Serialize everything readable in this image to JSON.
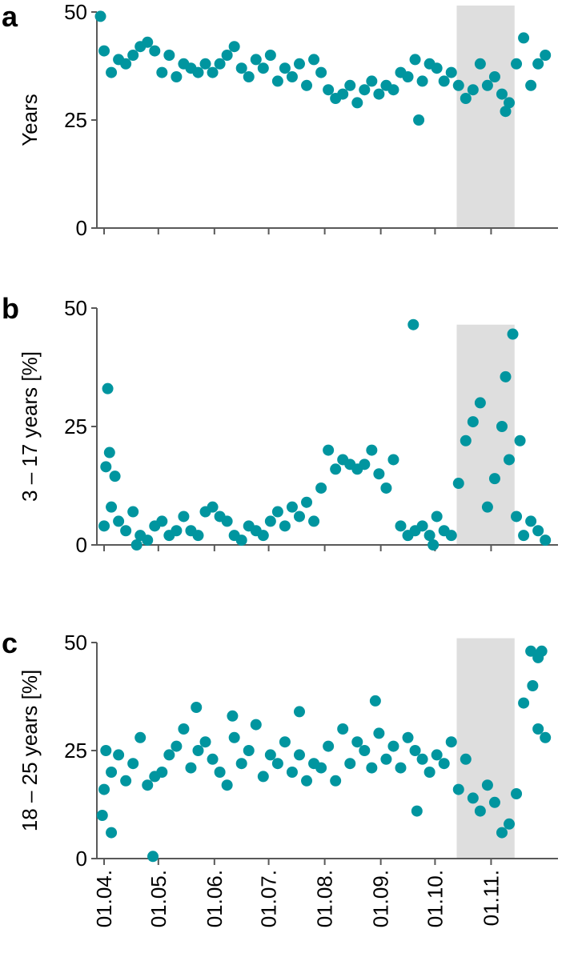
{
  "chart_data": [
    {
      "type": "scatter",
      "title": "a",
      "y_label": "Years",
      "color": "#00959f",
      "xlim": [
        -4,
        251
      ],
      "xticks": [
        0,
        30,
        61,
        91,
        122,
        153,
        183,
        214
      ],
      "ylim": [
        0,
        50
      ],
      "yticks": [
        0,
        25,
        50
      ],
      "band": {
        "x": [
          195,
          227
        ],
        "y": [
          0,
          51.5
        ],
        "color": "#dedede"
      },
      "x": [
        0,
        4,
        8,
        12,
        16,
        20,
        24,
        28,
        32,
        36,
        40,
        44,
        48,
        52,
        56,
        60,
        64,
        68,
        72,
        76,
        80,
        84,
        88,
        92,
        96,
        100,
        104,
        108,
        112,
        116,
        120,
        124,
        128,
        132,
        136,
        140,
        144,
        148,
        152,
        156,
        160,
        164,
        168,
        172,
        176,
        180,
        184,
        188,
        192,
        196,
        200,
        204,
        208,
        212,
        216,
        220,
        224,
        228,
        232,
        236,
        240,
        244,
        -2,
        174,
        222
      ],
      "values": [
        41,
        36,
        39,
        38,
        40,
        42,
        43,
        41,
        36,
        40,
        35,
        38,
        37,
        36,
        38,
        36,
        38,
        40,
        42,
        37,
        35,
        39,
        37,
        40,
        34,
        37,
        35,
        38,
        33,
        39,
        36,
        32,
        30,
        31,
        33,
        29,
        32,
        34,
        31,
        33,
        32,
        36,
        35,
        39,
        34,
        38,
        37,
        34,
        36,
        33,
        30,
        32,
        38,
        33,
        35,
        31,
        29,
        38,
        44,
        33,
        38,
        40,
        49,
        25,
        27
      ]
    },
    {
      "type": "scatter",
      "title": "b",
      "y_label": "3 – 17 years [%]",
      "color": "#00959f",
      "xlim": [
        -4,
        251
      ],
      "xticks": [
        0,
        30,
        61,
        91,
        122,
        153,
        183,
        214
      ],
      "ylim": [
        0,
        50
      ],
      "yticks": [
        0,
        25,
        50
      ],
      "band": {
        "x": [
          195,
          227
        ],
        "y": [
          0,
          46.5
        ],
        "color": "#dedede"
      },
      "x": [
        0,
        4,
        8,
        12,
        16,
        20,
        24,
        28,
        32,
        36,
        40,
        44,
        48,
        52,
        56,
        60,
        64,
        68,
        72,
        76,
        80,
        84,
        88,
        92,
        96,
        100,
        104,
        108,
        112,
        116,
        120,
        124,
        128,
        132,
        136,
        140,
        144,
        148,
        152,
        156,
        160,
        164,
        168,
        172,
        176,
        180,
        184,
        188,
        192,
        196,
        200,
        204,
        208,
        212,
        216,
        220,
        224,
        228,
        232,
        236,
        240,
        244,
        2,
        3,
        6,
        1,
        171,
        226,
        222,
        230,
        182,
        18
      ],
      "values": [
        4,
        8,
        5,
        3,
        7,
        2,
        1,
        4,
        5,
        2,
        3,
        6,
        3,
        2,
        7,
        8,
        6,
        5,
        2,
        1,
        4,
        3,
        2,
        5,
        7,
        4,
        8,
        6,
        9,
        5,
        12,
        20,
        16,
        18,
        17,
        16,
        17,
        20,
        15,
        12,
        18,
        4,
        2,
        3,
        4,
        2,
        6,
        3,
        2,
        13,
        22,
        26,
        30,
        8,
        14,
        25,
        18,
        6,
        2,
        5,
        3,
        1,
        33,
        19.5,
        14.5,
        16.5,
        46.5,
        44.5,
        35.5,
        22,
        0,
        0
      ]
    },
    {
      "type": "scatter",
      "title": "c",
      "y_label": "18 – 25 years [%]",
      "color": "#00959f",
      "xlim": [
        -4,
        251
      ],
      "xticks": [
        {
          "value": 0,
          "label": "01.04."
        },
        {
          "value": 30,
          "label": "01.05."
        },
        {
          "value": 61,
          "label": "01.06."
        },
        {
          "value": 91,
          "label": "01.07."
        },
        {
          "value": 122,
          "label": "01.08."
        },
        {
          "value": 153,
          "label": "01.09."
        },
        {
          "value": 183,
          "label": "01.10."
        },
        {
          "value": 214,
          "label": "01.11."
        }
      ],
      "ylim": [
        0,
        50
      ],
      "yticks": [
        0,
        25,
        50
      ],
      "band": {
        "x": [
          195,
          227
        ],
        "y": [
          0,
          51
        ],
        "color": "#dedede"
      },
      "x": [
        0,
        4,
        8,
        12,
        16,
        20,
        24,
        28,
        32,
        36,
        40,
        44,
        48,
        52,
        56,
        60,
        64,
        68,
        72,
        76,
        80,
        84,
        88,
        92,
        96,
        100,
        104,
        108,
        112,
        116,
        120,
        124,
        128,
        132,
        136,
        140,
        144,
        148,
        152,
        156,
        160,
        164,
        168,
        172,
        176,
        180,
        184,
        188,
        192,
        196,
        200,
        204,
        208,
        212,
        216,
        220,
        224,
        228,
        232,
        236,
        240,
        244,
        -1,
        1,
        4,
        27,
        51,
        71,
        108,
        150,
        173,
        237,
        240,
        242
      ],
      "values": [
        16,
        20,
        24,
        18,
        22,
        28,
        17,
        19,
        20,
        24,
        26,
        30,
        21,
        25,
        27,
        23,
        20,
        17,
        28,
        22,
        25,
        31,
        19,
        24,
        22,
        27,
        20,
        24,
        18,
        22,
        21,
        26,
        18,
        30,
        22,
        27,
        25,
        21,
        29,
        23,
        26,
        21,
        28,
        25,
        23,
        20,
        24,
        22,
        27,
        16,
        23,
        14,
        11,
        17,
        13,
        6,
        8,
        15,
        36,
        48,
        30,
        28,
        10,
        25,
        6,
        0.5,
        35,
        33,
        34,
        36.5,
        11,
        40,
        46.5,
        48
      ]
    }
  ]
}
